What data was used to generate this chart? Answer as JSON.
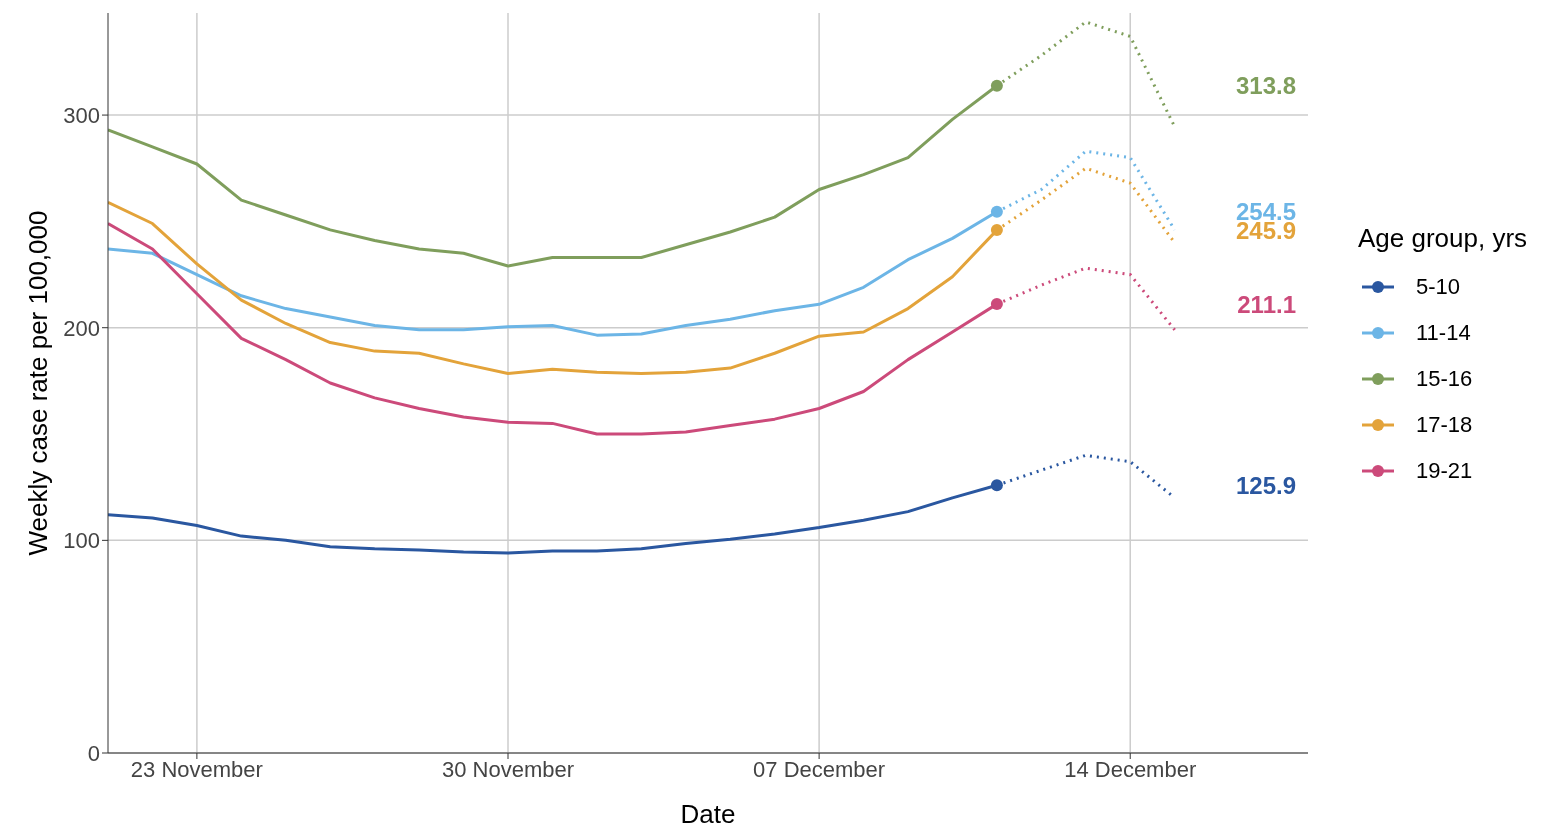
{
  "chart_data": {
    "type": "line",
    "xlabel": "Date",
    "ylabel": "Weekly case rate per 100,000",
    "legend_title": "Age group, yrs",
    "legend": "right",
    "grid": true,
    "xlim": [
      "--11-21",
      "--12-18"
    ],
    "xticks": [
      {
        "value": "--11-23",
        "label": "23 November"
      },
      {
        "value": "--11-30",
        "label": "30 November"
      },
      {
        "value": "--12-07",
        "label": "07 December"
      },
      {
        "value": "--12-14",
        "label": "14 December"
      }
    ],
    "ylim": [
      0,
      348
    ],
    "yticks": [
      0,
      100,
      200,
      300
    ],
    "annotations": [
      "125.9",
      "254.5",
      "313.8",
      "245.9",
      "211.1"
    ],
    "x": [
      "--11-21",
      "--11-22",
      "--11-23",
      "--11-24",
      "--11-25",
      "--11-26",
      "--11-27",
      "--11-28",
      "--11-29",
      "--11-30",
      "--12-01",
      "--12-02",
      "--12-03",
      "--12-04",
      "--12-05",
      "--12-06",
      "--12-07",
      "--12-08",
      "--12-09",
      "--12-10",
      "--12-11"
    ],
    "series": [
      {
        "name": "5-10",
        "color": "#2a57a0",
        "line_style": "solid",
        "values": [
          112,
          110.5,
          107,
          102,
          100,
          97,
          96,
          95.5,
          94.5,
          94,
          95,
          95,
          96,
          98.5,
          100.5,
          103,
          106,
          109.5,
          113.5,
          120,
          125.9
        ]
      },
      {
        "name": "11-14",
        "color": "#6cb5e6",
        "line_style": "solid",
        "values": [
          237,
          235,
          225,
          215,
          209,
          205,
          201,
          199,
          199,
          200.5,
          201,
          196.5,
          197,
          201,
          204,
          208,
          211,
          219,
          232,
          242,
          254.5
        ]
      },
      {
        "name": "15-16",
        "color": "#7f9e5c",
        "line_style": "solid",
        "values": [
          293,
          285,
          277,
          260,
          253,
          246,
          241,
          237,
          235,
          229,
          233,
          233,
          233,
          239,
          245,
          252,
          265,
          272,
          280,
          298,
          313.8
        ]
      },
      {
        "name": "17-18",
        "color": "#e3a33a",
        "line_style": "solid",
        "values": [
          259,
          249,
          230,
          213,
          202,
          193,
          189,
          188,
          183,
          178.5,
          180.5,
          179,
          178.5,
          179,
          181,
          188,
          196,
          198,
          209,
          224,
          245.9
        ]
      },
      {
        "name": "19-21",
        "color": "#cc4a7a",
        "line_style": "solid",
        "values": [
          249,
          237,
          216,
          195,
          185,
          174,
          167,
          162,
          158,
          155.5,
          155,
          150,
          150,
          151,
          154,
          157,
          162,
          170,
          185,
          198,
          211.1
        ]
      },
      {
        "color": "#2a57a0",
        "line_style": "dotted",
        "x": [
          "--12-11",
          "--12-12",
          "--12-13",
          "--12-14",
          "--12-15"
        ],
        "values": [
          125.9,
          133,
          140,
          137,
          120
        ]
      },
      {
        "color": "#6cb5e6",
        "line_style": "dotted",
        "x": [
          "--12-11",
          "--12-12",
          "--12-13",
          "--12-14",
          "--12-15"
        ],
        "values": [
          254.5,
          265,
          283,
          280,
          246
        ]
      },
      {
        "color": "#7f9e5c",
        "line_style": "dotted",
        "x": [
          "--12-11",
          "--12-12",
          "--12-13",
          "--12-14",
          "--12-15"
        ],
        "values": [
          313.8,
          328,
          343.8,
          337,
          294.5
        ]
      },
      {
        "color": "#e3a33a",
        "line_style": "dotted",
        "x": [
          "--12-11",
          "--12-12",
          "--12-13",
          "--12-14",
          "--12-15"
        ],
        "values": [
          245.9,
          260,
          275,
          268,
          240
        ]
      },
      {
        "color": "#cc4a7a",
        "line_style": "dotted",
        "x": [
          "--12-11",
          "--12-12",
          "--12-13",
          "--12-14",
          "--12-15"
        ],
        "values": [
          211.1,
          220,
          228,
          225,
          199
        ]
      }
    ]
  }
}
